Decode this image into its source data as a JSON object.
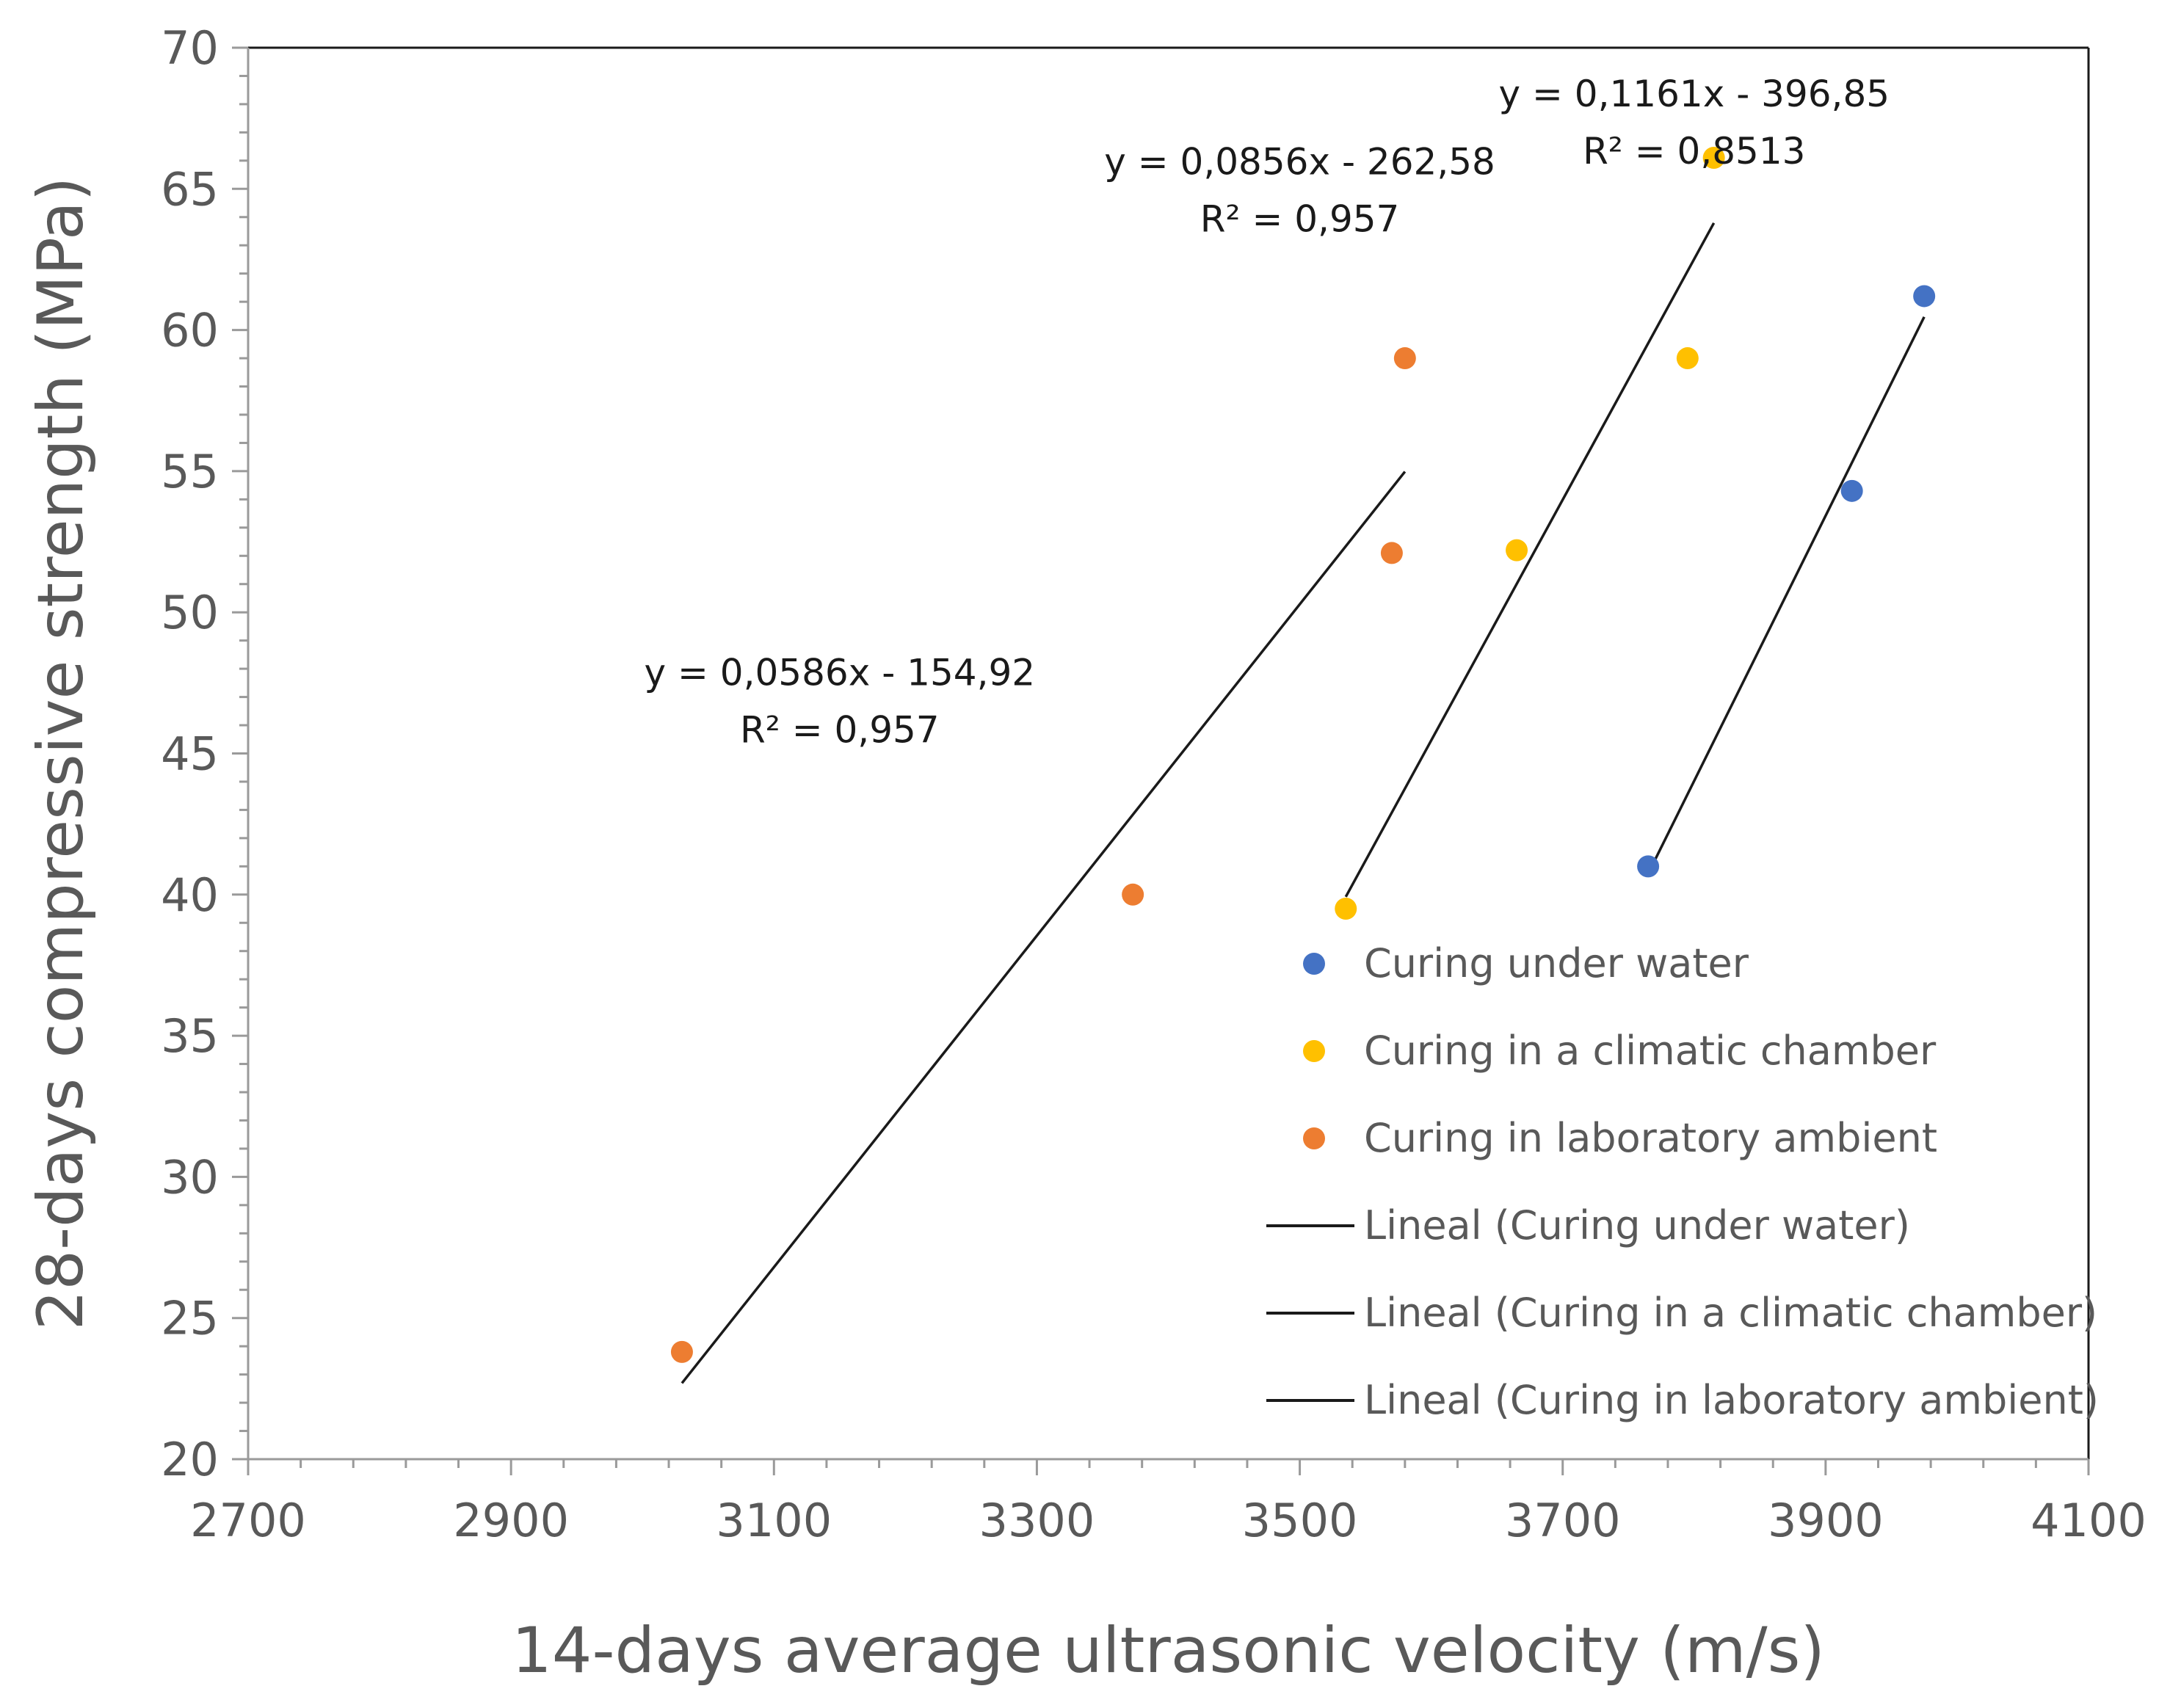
{
  "chart_data": {
    "type": "scatter",
    "title": "",
    "xlabel": "14-days average ultrasonic velocity (m/s)",
    "ylabel": "28-days compressive strength (MPa)",
    "xlim": [
      2700,
      4100
    ],
    "ylim": [
      20,
      70
    ],
    "x_major_step": 200,
    "x_minor_step": 40,
    "y_major_step": 5,
    "y_minor_step": 1,
    "x_ticks": [
      "2700",
      "2900",
      "3100",
      "3300",
      "3500",
      "3700",
      "3900",
      "4100"
    ],
    "y_ticks": [
      "20",
      "25",
      "30",
      "35",
      "40",
      "45",
      "50",
      "55",
      "60",
      "65",
      "70"
    ],
    "grid": false,
    "legend_position": "lower-right inside plot",
    "series": [
      {
        "name": "Curing under water",
        "color": "#4472C4",
        "points": [
          [
            3765,
            41.0
          ],
          [
            3920,
            54.3
          ],
          [
            3975,
            61.2
          ]
        ]
      },
      {
        "name": "Curing in a climatic chamber",
        "color": "#FFC000",
        "points": [
          [
            3535,
            39.5
          ],
          [
            3665,
            52.2
          ],
          [
            3795,
            59.0
          ],
          [
            3815,
            66.1
          ]
        ]
      },
      {
        "name": "Curing in laboratory ambient",
        "color": "#ED7D31",
        "points": [
          [
            3030,
            23.8
          ],
          [
            3373,
            40.0
          ],
          [
            3570,
            52.1
          ],
          [
            3580,
            59.0
          ]
        ]
      }
    ],
    "trendlines": [
      {
        "name": "Lineal (Curing under water)",
        "series": "Curing under water",
        "color": "#1a1a1a",
        "x_range": [
          3765,
          3975
        ],
        "eq_line1": "y = 0,1161x - 396,85",
        "eq_line2": "R² = 0,8513"
      },
      {
        "name": "Lineal (Curing in a climatic chamber)",
        "series": "Curing in a climatic chamber",
        "color": "#1a1a1a",
        "x_range": [
          3535,
          3815
        ],
        "eq_line1": "y = 0,0856x - 262,58",
        "eq_line2": "R² = 0,957"
      },
      {
        "name": "Lineal (Curing in laboratory ambient)",
        "series": "Curing in laboratory ambient",
        "color": "#1a1a1a",
        "x_range": [
          3030,
          3580
        ],
        "eq_line1": "y = 0,0586x - 154,92",
        "eq_line2": "R² = 0,957"
      }
    ]
  }
}
